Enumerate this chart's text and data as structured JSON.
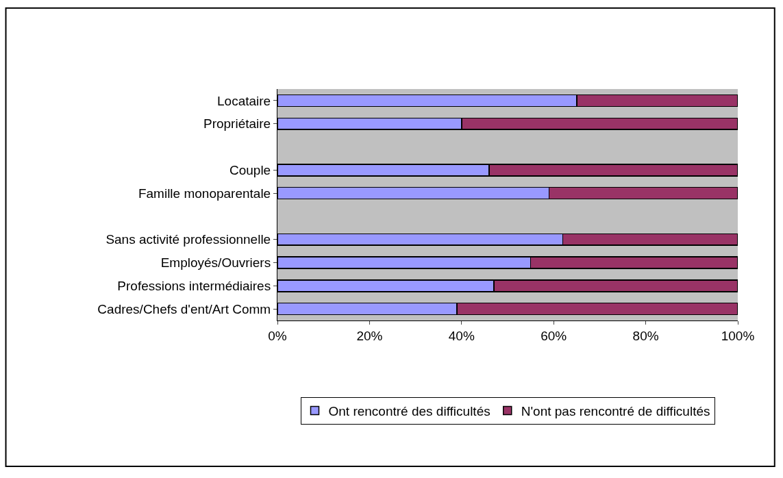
{
  "chart_data": {
    "type": "bar",
    "orientation": "horizontal",
    "stacked": true,
    "categories": [
      "Locataire",
      "Propriétaire",
      null,
      "Couple",
      "Famille monoparentale",
      null,
      "Sans activité professionnelle",
      "Employés/Ouvriers",
      "Professions intermédiaires",
      "Cadres/Chefs d'ent/Art Comm"
    ],
    "series": [
      {
        "name": "Ont rencontré des difficultés",
        "color": "#9999ff",
        "values": [
          65,
          40,
          null,
          46,
          59,
          null,
          62,
          55,
          47,
          39
        ]
      },
      {
        "name": "N'ont pas rencontré de difficultés",
        "color": "#993366",
        "values": [
          35,
          60,
          null,
          54,
          41,
          null,
          38,
          45,
          53,
          61
        ]
      }
    ],
    "xlim": [
      0,
      100
    ],
    "xticks": [
      {
        "value": 0,
        "label": "0%"
      },
      {
        "value": 20,
        "label": "20%"
      },
      {
        "value": 40,
        "label": "40%"
      },
      {
        "value": 60,
        "label": "60%"
      },
      {
        "value": 80,
        "label": "80%"
      },
      {
        "value": 100,
        "label": "100%"
      }
    ],
    "grid": false,
    "legend": "bottom"
  }
}
